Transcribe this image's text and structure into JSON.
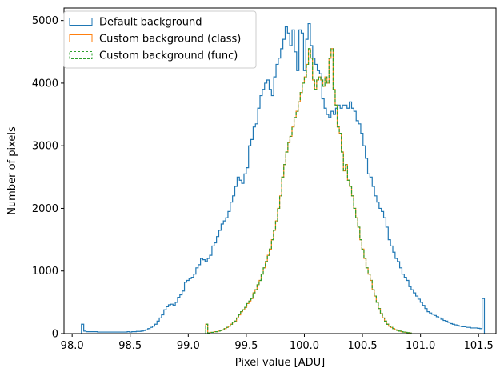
{
  "chart_data": {
    "type": "histogram",
    "xlabel": "Pixel value [ADU]",
    "ylabel": "Number of pixels",
    "xlim": [
      97.93,
      101.65
    ],
    "ylim": [
      0,
      5200
    ],
    "x_ticks": [
      98.0,
      98.5,
      99.0,
      99.5,
      100.0,
      100.5,
      101.0,
      101.5
    ],
    "x_tick_labels": [
      "98.0",
      "98.5",
      "99.0",
      "99.5",
      "100.0",
      "100.5",
      "101.0",
      "101.5"
    ],
    "y_ticks": [
      0,
      1000,
      2000,
      3000,
      4000,
      5000
    ],
    "y_tick_labels": [
      "0",
      "1000",
      "2000",
      "3000",
      "4000",
      "5000"
    ],
    "grid": false,
    "legend_position": "top-left",
    "series": [
      {
        "name": "Default background",
        "color": "#1f77b4",
        "linestyle": "solid",
        "bin_edges_range": [
          98.08,
          101.55
        ],
        "values": [
          150,
          40,
          30,
          30,
          30,
          30,
          30,
          25,
          25,
          25,
          25,
          25,
          25,
          25,
          25,
          25,
          25,
          25,
          25,
          25,
          30,
          25,
          30,
          30,
          35,
          35,
          40,
          50,
          60,
          80,
          100,
          120,
          150,
          200,
          250,
          300,
          380,
          430,
          460,
          470,
          450,
          500,
          580,
          620,
          680,
          820,
          850,
          880,
          900,
          950,
          1050,
          1100,
          1200,
          1180,
          1150,
          1200,
          1250,
          1400,
          1450,
          1550,
          1650,
          1750,
          1800,
          1850,
          1950,
          2100,
          2200,
          2350,
          2500,
          2450,
          2400,
          2550,
          2650,
          3000,
          3100,
          3300,
          3350,
          3600,
          3800,
          3900,
          4000,
          4050,
          3900,
          3800,
          4100,
          4300,
          4400,
          4550,
          4700,
          4900,
          4800,
          4600,
          4850,
          4500,
          4200,
          4850,
          4800,
          4200,
          4700,
          4950,
          4600,
          4400,
          4300,
          4200,
          4150,
          3750,
          3600,
          3500,
          3450,
          3550,
          3500,
          3600,
          3650,
          3600,
          3650,
          3650,
          3600,
          3700,
          3600,
          3550,
          3400,
          3350,
          3200,
          3000,
          2800,
          2550,
          2500,
          2350,
          2200,
          2100,
          2000,
          1950,
          1850,
          1700,
          1500,
          1400,
          1300,
          1200,
          1150,
          1050,
          950,
          900,
          850,
          750,
          700,
          650,
          600,
          550,
          500,
          450,
          400,
          350,
          330,
          310,
          290,
          270,
          250,
          230,
          210,
          200,
          180,
          160,
          150,
          140,
          130,
          120,
          110,
          110,
          100,
          100,
          90,
          90,
          90,
          85,
          80,
          560
        ]
      },
      {
        "name": "Custom background (class)",
        "color": "#ff7f0e",
        "linestyle": "solid",
        "bin_edges_range": [
          99.15,
          100.92
        ],
        "values": [
          150,
          10,
          20,
          20,
          30,
          30,
          40,
          50,
          60,
          80,
          100,
          120,
          150,
          180,
          200,
          250,
          300,
          350,
          380,
          420,
          480,
          520,
          560,
          650,
          700,
          780,
          850,
          950,
          1050,
          1150,
          1250,
          1350,
          1500,
          1650,
          1800,
          2000,
          2200,
          2500,
          2700,
          2900,
          3050,
          3150,
          3300,
          3450,
          3550,
          3700,
          3850,
          4000,
          4100,
          4300,
          4550,
          4400,
          4050,
          3900,
          4050,
          4100,
          4050,
          3950,
          4100,
          4000,
          4400,
          4550,
          3900,
          3650,
          3300,
          3200,
          2900,
          2600,
          2700,
          2450,
          2350,
          2200,
          2000,
          1850,
          1700,
          1500,
          1350,
          1200,
          1050,
          950,
          850,
          700,
          600,
          500,
          400,
          320,
          250,
          200,
          150,
          120,
          100,
          80,
          60,
          50,
          40,
          30,
          25,
          20,
          15,
          10
        ]
      },
      {
        "name": "Custom background (func)",
        "color": "#2ca02c",
        "linestyle": "dashed",
        "bin_edges_range": [
          99.15,
          100.92
        ],
        "values": [
          150,
          10,
          20,
          20,
          30,
          30,
          40,
          50,
          60,
          80,
          100,
          120,
          150,
          180,
          200,
          250,
          300,
          350,
          380,
          420,
          480,
          520,
          560,
          650,
          700,
          780,
          850,
          950,
          1050,
          1150,
          1250,
          1350,
          1500,
          1650,
          1800,
          2000,
          2200,
          2500,
          2700,
          2900,
          3050,
          3150,
          3300,
          3450,
          3550,
          3700,
          3850,
          4000,
          4100,
          4300,
          4550,
          4400,
          4050,
          3900,
          4050,
          4100,
          4050,
          3950,
          4100,
          4000,
          4400,
          4550,
          3900,
          3650,
          3300,
          3200,
          2900,
          2600,
          2700,
          2450,
          2350,
          2200,
          2000,
          1850,
          1700,
          1500,
          1350,
          1200,
          1050,
          950,
          850,
          700,
          600,
          500,
          400,
          320,
          250,
          200,
          150,
          120,
          100,
          80,
          60,
          50,
          40,
          30,
          25,
          20,
          15,
          10
        ]
      }
    ]
  }
}
